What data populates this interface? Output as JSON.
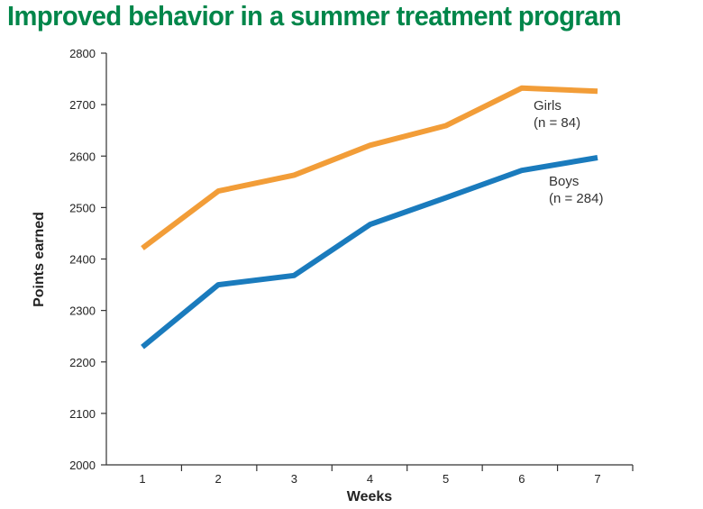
{
  "chart_data": {
    "type": "line",
    "title": "Improved behavior in a summer treatment program",
    "xlabel": "Weeks",
    "ylabel": "Points earned",
    "x": [
      1,
      2,
      3,
      4,
      5,
      6,
      7
    ],
    "ylim": [
      2000,
      2800
    ],
    "y_ticks": [
      2000,
      2100,
      2200,
      2300,
      2400,
      2500,
      2600,
      2700,
      2800
    ],
    "grid": false,
    "series": [
      {
        "name": "Girls",
        "note": "(n = 84)",
        "color": "#f29d38",
        "values": [
          2421,
          2532,
          2563,
          2621,
          2659,
          2732,
          2726
        ]
      },
      {
        "name": "Boys",
        "note": "(n = 284)",
        "color": "#1a7bbd",
        "values": [
          2229,
          2350,
          2368,
          2467,
          2519,
          2572,
          2597
        ]
      }
    ]
  }
}
